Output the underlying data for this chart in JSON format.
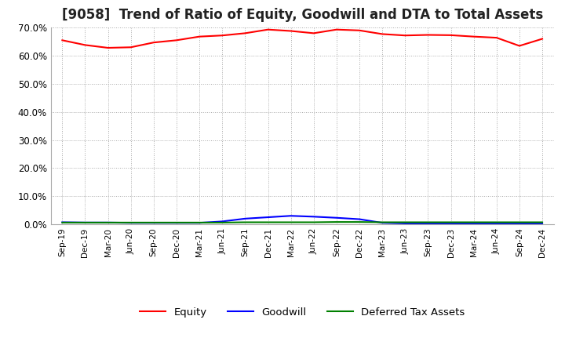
{
  "title": "[9058]  Trend of Ratio of Equity, Goodwill and DTA to Total Assets",
  "x_labels": [
    "Sep-19",
    "Dec-19",
    "Mar-20",
    "Jun-20",
    "Sep-20",
    "Dec-20",
    "Mar-21",
    "Jun-21",
    "Sep-21",
    "Dec-21",
    "Mar-22",
    "Jun-22",
    "Sep-22",
    "Dec-22",
    "Mar-23",
    "Jun-23",
    "Sep-23",
    "Dec-23",
    "Mar-24",
    "Jun-24",
    "Sep-24",
    "Dec-24"
  ],
  "equity": [
    0.655,
    0.638,
    0.628,
    0.63,
    0.647,
    0.655,
    0.668,
    0.672,
    0.68,
    0.693,
    0.688,
    0.68,
    0.693,
    0.69,
    0.677,
    0.672,
    0.674,
    0.673,
    0.668,
    0.664,
    0.635,
    0.66
  ],
  "goodwill": [
    0.007,
    0.006,
    0.006,
    0.005,
    0.005,
    0.005,
    0.005,
    0.01,
    0.02,
    0.025,
    0.03,
    0.027,
    0.023,
    0.018,
    0.005,
    0.003,
    0.003,
    0.003,
    0.003,
    0.003,
    0.003,
    0.003
  ],
  "dta": [
    0.006,
    0.006,
    0.006,
    0.006,
    0.006,
    0.006,
    0.006,
    0.006,
    0.007,
    0.007,
    0.007,
    0.007,
    0.008,
    0.008,
    0.007,
    0.007,
    0.007,
    0.007,
    0.007,
    0.007,
    0.007,
    0.007
  ],
  "equity_color": "#FF0000",
  "goodwill_color": "#0000FF",
  "dta_color": "#008000",
  "background_color": "#FFFFFF",
  "grid_color": "#AAAAAA",
  "ylim": [
    0.0,
    0.7
  ],
  "yticks": [
    0.0,
    0.1,
    0.2,
    0.3,
    0.4,
    0.5,
    0.6,
    0.7
  ],
  "title_fontsize": 12,
  "legend_labels": [
    "Equity",
    "Goodwill",
    "Deferred Tax Assets"
  ]
}
